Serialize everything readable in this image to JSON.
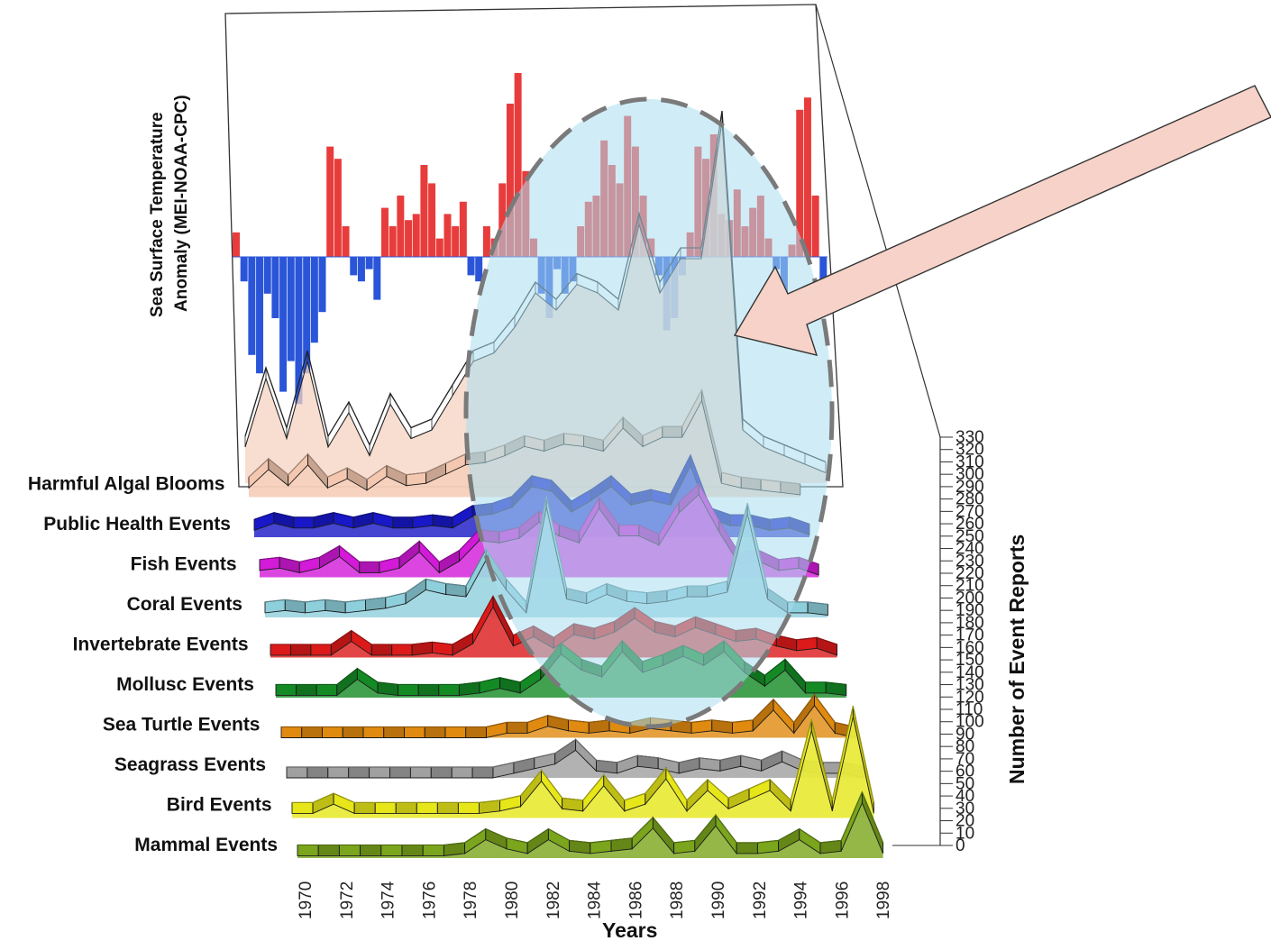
{
  "chart_data": {
    "type": "area",
    "style": "3d-ribbon-stack",
    "xlabel": "Years",
    "ylabel": "Number of Event Reports",
    "sst_label_line1": "Sea Surface Temperature",
    "sst_label_line2": "Anomaly (MEI-NOAA-CPC)",
    "years": [
      1970,
      1971,
      1972,
      1973,
      1974,
      1975,
      1976,
      1977,
      1978,
      1979,
      1980,
      1981,
      1982,
      1983,
      1984,
      1985,
      1986,
      1987,
      1988,
      1989,
      1990,
      1991,
      1992,
      1993,
      1994,
      1995,
      1996,
      1997,
      1998
    ],
    "x_tick_labels": [
      "1970",
      "1972",
      "1974",
      "1976",
      "1978",
      "1980",
      "1982",
      "1984",
      "1986",
      "1988",
      "1990",
      "1992",
      "1994",
      "1996",
      "1998"
    ],
    "y_ticks": [
      "0",
      "10",
      "20",
      "30",
      "40",
      "50",
      "60",
      "70",
      "80",
      "90",
      "100",
      "110",
      "120",
      "130",
      "140",
      "150",
      "160",
      "170",
      "180",
      "190",
      "200",
      "210",
      "220",
      "230",
      "240",
      "250",
      "260",
      "270",
      "280",
      "290",
      "300",
      "310",
      "320",
      "330"
    ],
    "ylim": [
      0,
      330
    ],
    "series": [
      {
        "name": "Mammal Events",
        "color": "#7aa51c",
        "values": [
          1,
          1,
          1,
          1,
          1,
          1,
          1,
          1,
          2,
          8,
          4,
          2,
          8,
          3,
          2,
          3,
          4,
          13,
          2,
          3,
          14,
          2,
          2,
          3,
          8,
          2,
          3,
          24,
          2
        ]
      },
      {
        "name": "Bird Events",
        "color": "#e6e619",
        "values": [
          2,
          2,
          6,
          2,
          2,
          2,
          2,
          2,
          2,
          2,
          3,
          5,
          16,
          4,
          3,
          14,
          3,
          6,
          17,
          3,
          12,
          4,
          8,
          12,
          3,
          38,
          3,
          44,
          2
        ]
      },
      {
        "name": "Seagrass Events",
        "color": "#a0a0a0",
        "values": [
          0,
          0,
          0,
          0,
          0,
          0,
          0,
          0,
          0,
          0,
          0,
          2,
          4,
          6,
          12,
          3,
          2,
          5,
          4,
          2,
          4,
          3,
          5,
          3,
          7,
          3,
          2,
          2,
          0
        ]
      },
      {
        "name": "Sea Turtle Events",
        "color": "#e08a10",
        "values": [
          0,
          0,
          0,
          0,
          0,
          0,
          0,
          0,
          0,
          0,
          0,
          2,
          2,
          5,
          3,
          2,
          3,
          2,
          4,
          3,
          2,
          3,
          2,
          3,
          12,
          2,
          14,
          2,
          0
        ]
      },
      {
        "name": "Mollusc Events",
        "color": "#148a24",
        "values": [
          1,
          1,
          1,
          1,
          8,
          2,
          1,
          1,
          1,
          1,
          2,
          4,
          2,
          8,
          19,
          12,
          9,
          20,
          11,
          14,
          18,
          14,
          20,
          11,
          5,
          12,
          2,
          2,
          1
        ]
      },
      {
        "name": "Invertebrate Events",
        "color": "#dd1a1a",
        "values": [
          1,
          1,
          1,
          1,
          7,
          1,
          1,
          1,
          2,
          1,
          6,
          22,
          5,
          9,
          4,
          10,
          8,
          11,
          17,
          11,
          9,
          13,
          10,
          7,
          8,
          5,
          3,
          4,
          1
        ]
      },
      {
        "name": "Coral Events",
        "color": "#8ecfdc",
        "values": [
          2,
          3,
          2,
          3,
          2,
          3,
          4,
          6,
          12,
          10,
          9,
          25,
          12,
          2,
          48,
          8,
          6,
          10,
          7,
          6,
          7,
          9,
          9,
          11,
          45,
          8,
          2,
          2,
          1
        ]
      },
      {
        "name": "Fish Events",
        "color": "#d21ad8",
        "values": [
          3,
          4,
          2,
          4,
          9,
          2,
          2,
          4,
          11,
          2,
          7,
          16,
          15,
          17,
          24,
          18,
          15,
          30,
          18,
          18,
          14,
          28,
          36,
          20,
          6,
          7,
          3,
          4,
          1
        ]
      },
      {
        "name": "Public Health Events",
        "color": "#1818c8",
        "values": [
          3,
          6,
          4,
          4,
          6,
          4,
          6,
          4,
          4,
          5,
          4,
          9,
          10,
          13,
          22,
          20,
          11,
          16,
          22,
          14,
          16,
          14,
          31,
          8,
          5,
          5,
          3,
          4,
          1
        ]
      },
      {
        "name": "Harmful Algal Blooms",
        "color": "#f4c8b0",
        "values": [
          4,
          12,
          5,
          14,
          4,
          8,
          3,
          9,
          5,
          6,
          10,
          14,
          15,
          18,
          22,
          20,
          23,
          22,
          20,
          30,
          22,
          26,
          26,
          42,
          6,
          4,
          3,
          2,
          1
        ]
      }
    ],
    "sst_anomaly_series": {
      "name": "Sea Surface Temperature Anomaly",
      "positive_color": "#e83c3c",
      "negative_color": "#2a55d8",
      "values": [
        0.4,
        -0.4,
        -1.6,
        -1.9,
        -0.6,
        -1.0,
        -2.2,
        -1.7,
        -2.4,
        -1.9,
        -1.4,
        -0.9,
        1.8,
        1.6,
        0.5,
        -0.3,
        -0.4,
        -0.2,
        -0.7,
        0.8,
        0.5,
        1.0,
        0.6,
        0.7,
        1.5,
        1.2,
        0.3,
        0.7,
        0.5,
        0.9,
        -0.3,
        -0.4,
        0.5,
        0.3,
        1.2,
        2.5,
        3.0,
        1.4,
        0.3,
        -0.6,
        -1.0,
        -0.2,
        -0.6,
        -0.4,
        0.5,
        0.9,
        1.0,
        1.9,
        1.5,
        1.2,
        2.3,
        1.8,
        1.0,
        0.3,
        -0.3,
        -1.2,
        -1.0,
        -0.3,
        0.4,
        1.8,
        1.6,
        2.0,
        0.7,
        0.6,
        1.1,
        0.5,
        0.8,
        1.0,
        0.3,
        -0.2,
        -1.2,
        0.2,
        2.4,
        2.6,
        1.0,
        -0.5
      ]
    }
  },
  "annotations": {
    "highlight_ellipse_color": "#7a7a7a",
    "highlight_fill": "#a9dff0",
    "arrow_color": "#f6d2c8",
    "arrow_outline": "#333333"
  }
}
